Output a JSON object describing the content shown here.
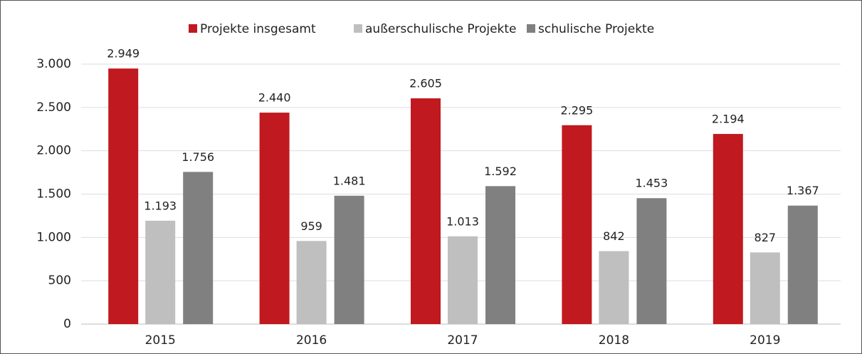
{
  "chart_data": {
    "type": "bar",
    "categories": [
      "2015",
      "2016",
      "2017",
      "2018",
      "2019"
    ],
    "series": [
      {
        "name": "Projekte insgesamt",
        "color": "#c0191f",
        "values": [
          2949,
          2440,
          2605,
          2295,
          2194
        ],
        "value_labels": [
          "2.949",
          "2.440",
          "2.605",
          "2.295",
          "2.194"
        ]
      },
      {
        "name": "außerschulische Projekte",
        "color": "#bfbfbf",
        "values": [
          1193,
          959,
          1013,
          842,
          827
        ],
        "value_labels": [
          "1.193",
          "959",
          "1.013",
          "842",
          "827"
        ]
      },
      {
        "name": "schulische Projekte",
        "color": "#808080",
        "values": [
          1756,
          1481,
          1592,
          1453,
          1367
        ],
        "value_labels": [
          "1.756",
          "1.481",
          "1.592",
          "1.453",
          "1.367"
        ]
      }
    ],
    "ylim": [
      0,
      3000
    ],
    "yticks": [
      0,
      500,
      {
        "value": 1000,
        "label": "1.000"
      },
      {
        "value": 1500,
        "label": "1.500"
      },
      {
        "value": 2000,
        "label": "2.000"
      },
      {
        "value": 2500,
        "label": "2.500"
      },
      {
        "value": 3000,
        "label": "3.000"
      }
    ],
    "grid": true,
    "legend": "top"
  }
}
